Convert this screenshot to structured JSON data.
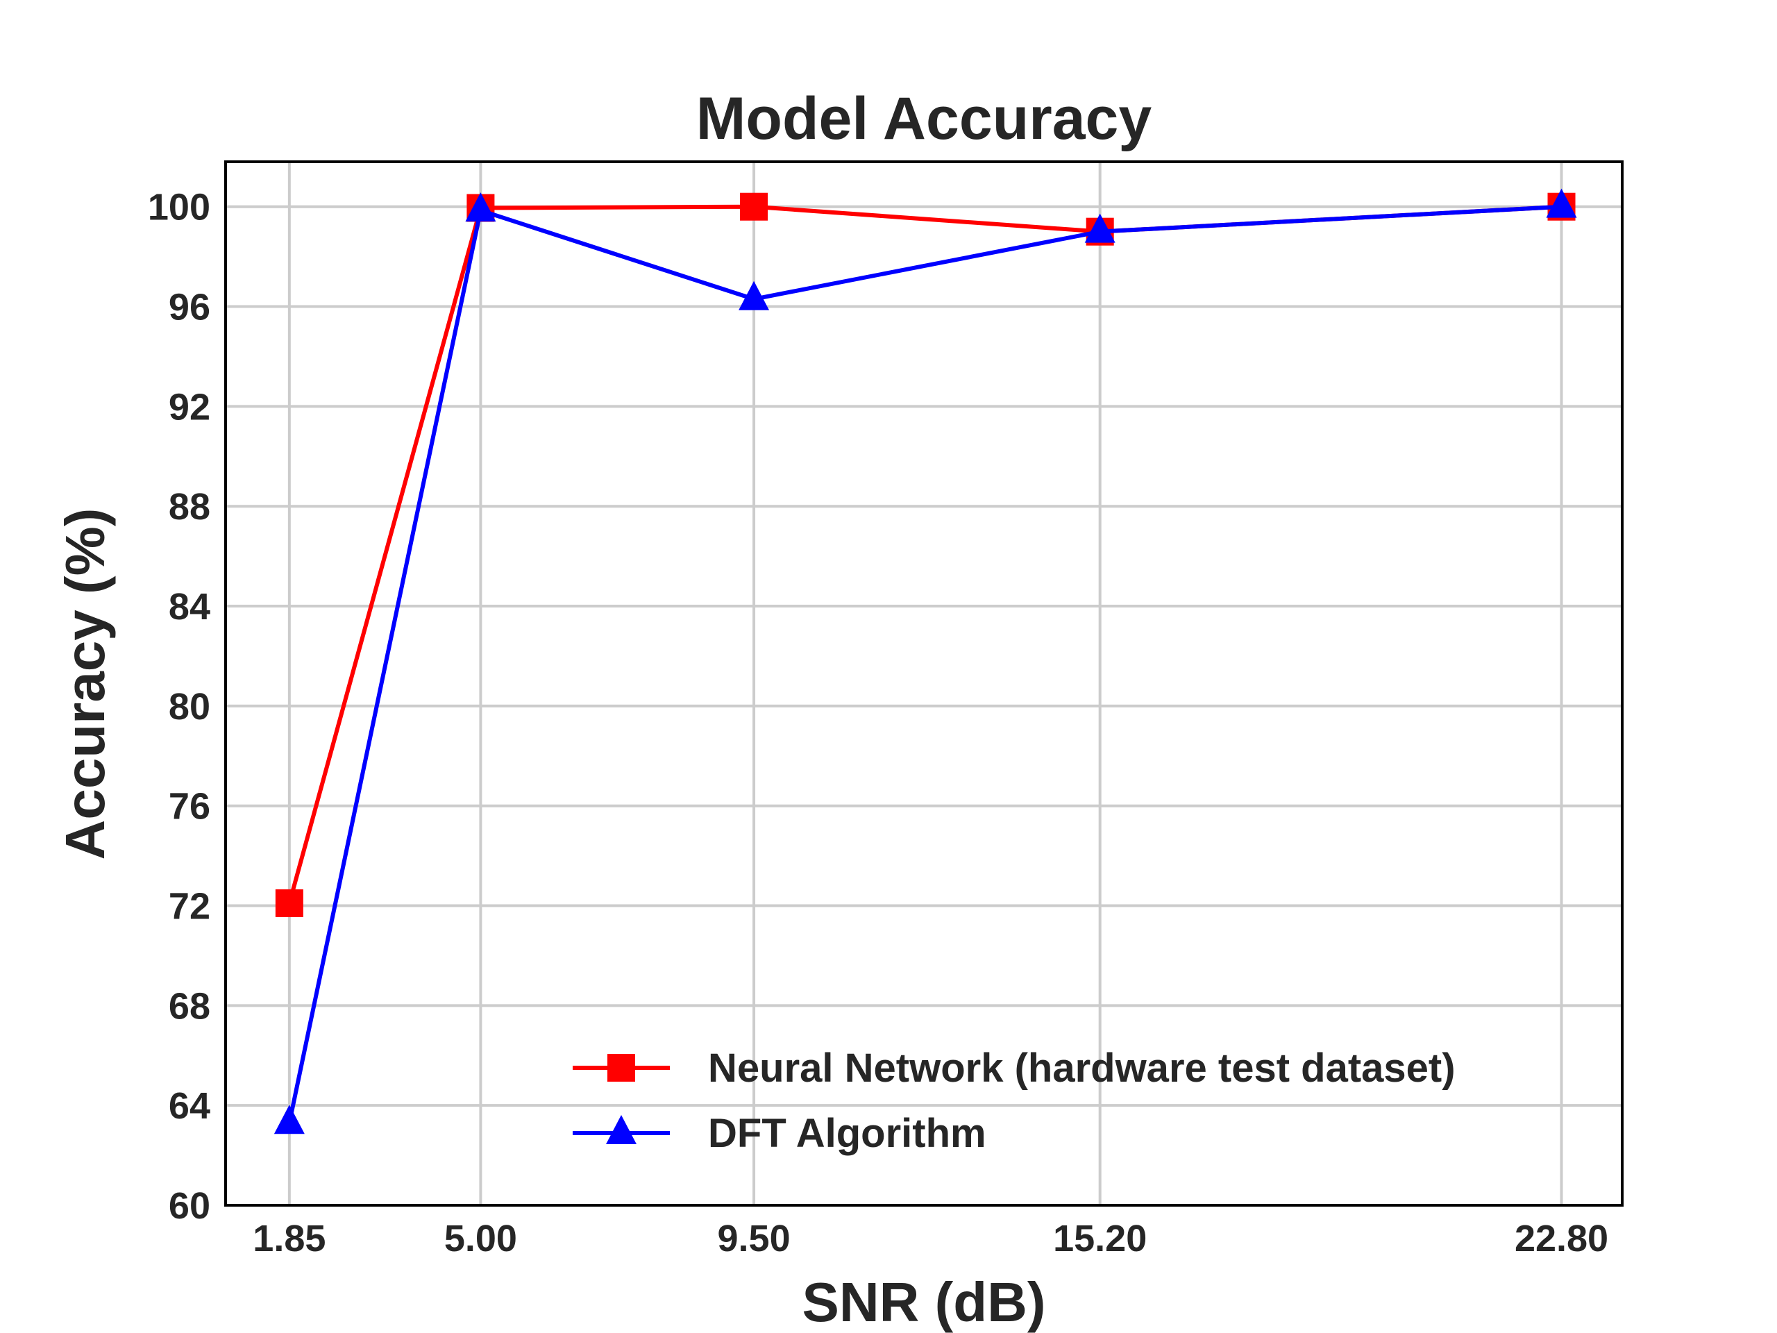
{
  "chart_data": {
    "type": "line",
    "title": "Model Accuracy",
    "xlabel": "SNR (dB)",
    "ylabel": "Accuracy (%)",
    "x": [
      1.85,
      5.0,
      9.5,
      15.2,
      22.8
    ],
    "x_tick_labels": [
      "1.85",
      "5.00",
      "9.50",
      "15.20",
      "22.80"
    ],
    "y_ticks": [
      60,
      64,
      68,
      72,
      76,
      80,
      84,
      88,
      92,
      96,
      100
    ],
    "y_tick_labels": [
      "60",
      "64",
      "68",
      "72",
      "76",
      "80",
      "84",
      "88",
      "92",
      "96",
      "100"
    ],
    "xlim": [
      0.8,
      23.8
    ],
    "ylim": [
      60,
      101.8
    ],
    "grid": true,
    "legend_position": "lower-right",
    "series": [
      {
        "name": "Neural Network (hardware test dataset)",
        "values": [
          72.1,
          99.95,
          100.0,
          99.0,
          100.0
        ],
        "color": "#ff0000",
        "marker": "square"
      },
      {
        "name": "DFT Algorithm",
        "values": [
          63.3,
          99.85,
          96.3,
          99.0,
          100.0
        ],
        "color": "#0000ff",
        "marker": "triangle"
      }
    ]
  }
}
